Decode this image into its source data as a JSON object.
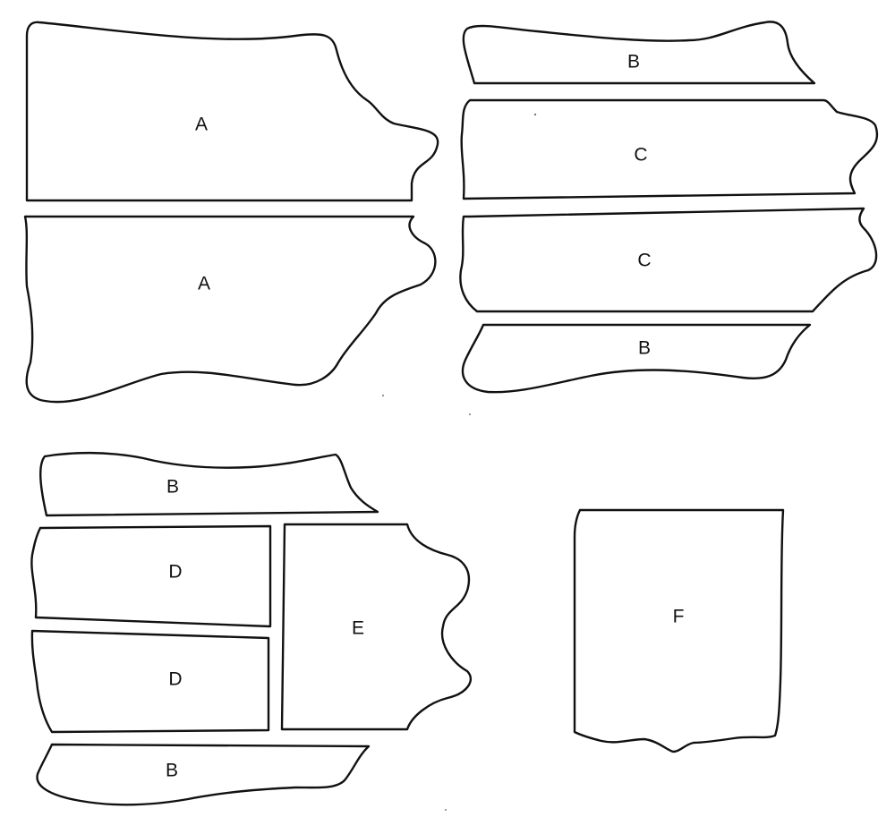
{
  "pieces": {
    "a1": "A",
    "a2": "A",
    "b1": "B",
    "c1": "C",
    "c2": "C",
    "b2": "B",
    "b3": "B",
    "d1": "D",
    "d2": "D",
    "e": "E",
    "b4": "B",
    "f": "F"
  }
}
